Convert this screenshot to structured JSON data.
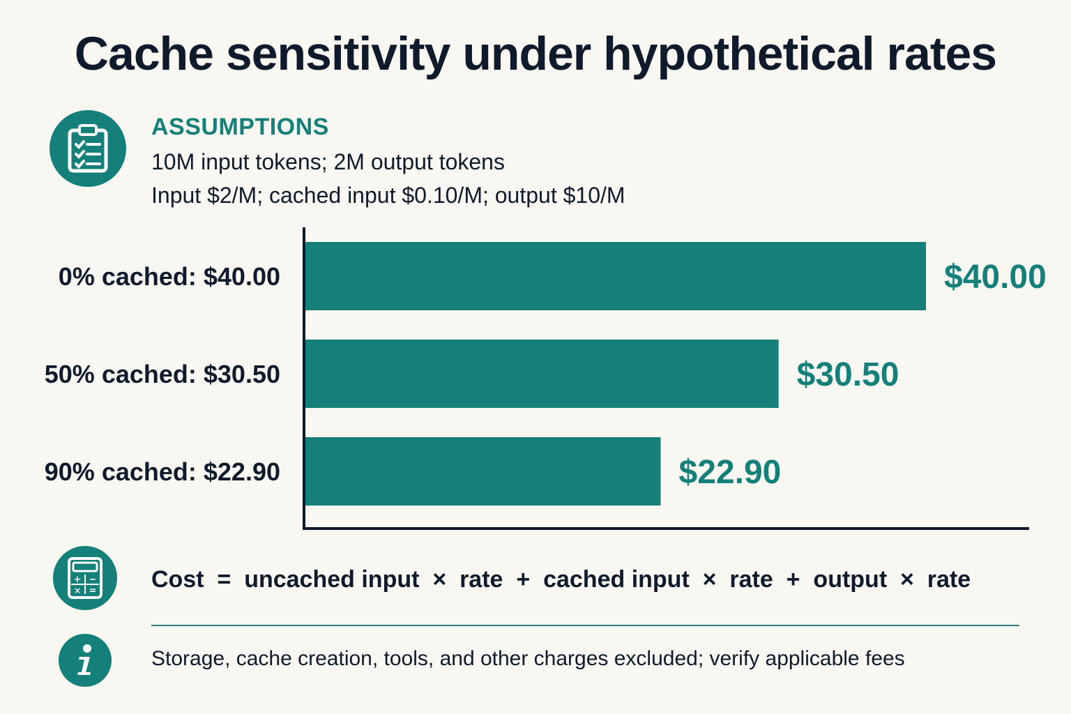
{
  "title": "Cache sensitivity under hypothetical rates",
  "assumptions": {
    "icon": "clipboard-checklist-icon",
    "heading": "ASSUMPTIONS",
    "line1": "10M input tokens; 2M output tokens",
    "line2": "Input $2/M; cached input $0.10/M; output $10/M"
  },
  "colors": {
    "accent": "#157f79",
    "bar": "#157f79",
    "text": "#0f1b2d",
    "background": "#f8f7f1"
  },
  "chart_data": {
    "type": "bar",
    "orientation": "horizontal",
    "categories": [
      "0% cached: $40.00",
      "50% cached: $30.50",
      "90% cached: $22.90"
    ],
    "values": [
      40.0,
      30.5,
      22.9
    ],
    "value_labels": [
      "$40.00",
      "$30.50",
      "$22.90"
    ],
    "xlim": [
      0,
      46
    ],
    "grid": false,
    "legend": "none"
  },
  "formula": {
    "icon": "calculator-icon",
    "text": "Cost  =  uncached input  ×  rate  +  cached input  ×  rate  +  output  ×  rate"
  },
  "footnote": {
    "icon": "info-icon",
    "text": "Storage, cache creation, tools, and other charges excluded; verify applicable fees"
  }
}
